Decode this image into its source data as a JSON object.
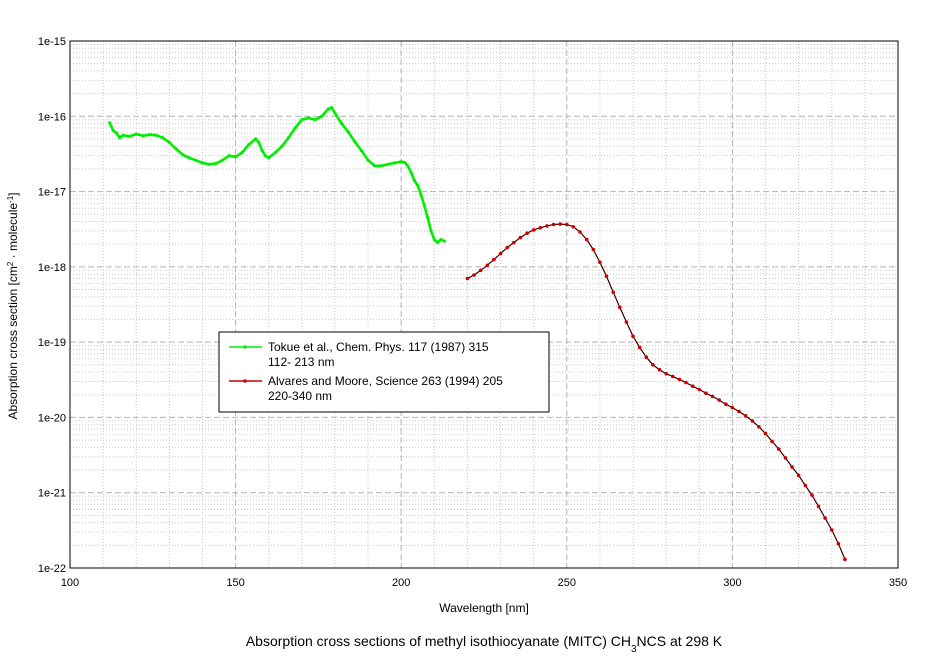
{
  "chart_data": {
    "type": "line",
    "title": "",
    "caption": "Absorption cross sections of methyl isothiocyanate (MITC) CH3NCS at 298 K",
    "caption_parts": {
      "before": "Absorption cross sections of methyl isothiocyanate (MITC) CH",
      "sub": "3",
      "after": "NCS at 298 K"
    },
    "xlabel": "Wavelength [nm]",
    "ylabel": "Absorption cross section [cm2 · molecule-1]",
    "ylabel_parts": {
      "pre": "Absorption cross section [cm",
      "sup1": "2",
      "mid": " · molecule",
      "sup2": "-1",
      "post": "]"
    },
    "x_scale": "linear",
    "y_scale": "log",
    "xlim": [
      100,
      350
    ],
    "ylim": [
      1e-22,
      1e-15
    ],
    "x_ticks": [
      "100",
      "150",
      "200",
      "250",
      "300",
      "350"
    ],
    "y_ticks": [
      "1e-22",
      "1e-21",
      "1e-20",
      "1e-19",
      "1e-18",
      "1e-17",
      "1e-16",
      "1e-15"
    ],
    "grid": true,
    "legend_position": "center-left",
    "series": [
      {
        "name": "Tokue et al., Chem. Phys. 117 (1987) 315",
        "range": "112- 213 nm",
        "color": "#00ee00",
        "x": [
          112,
          113,
          114,
          115,
          116,
          118,
          120,
          122,
          124,
          126,
          128,
          130,
          132,
          134,
          136,
          138,
          140,
          142,
          144,
          146,
          148,
          150,
          152,
          154,
          156,
          157,
          158,
          159,
          160,
          162,
          164,
          166,
          168,
          170,
          172,
          174,
          176,
          178,
          179,
          180,
          182,
          184,
          186,
          188,
          190,
          192,
          194,
          196,
          198,
          200,
          201,
          202,
          203,
          204,
          205,
          206,
          207,
          208,
          209,
          210,
          211,
          212,
          213
        ],
        "y": [
          8.2e-17,
          6.5e-17,
          6e-17,
          5.2e-17,
          5.6e-17,
          5.4e-17,
          5.8e-17,
          5.5e-17,
          5.7e-17,
          5.6e-17,
          5.2e-17,
          4.5e-17,
          3.7e-17,
          3.1e-17,
          2.8e-17,
          2.6e-17,
          2.4e-17,
          2.3e-17,
          2.35e-17,
          2.6e-17,
          3e-17,
          2.9e-17,
          3.3e-17,
          4.2e-17,
          5e-17,
          4.5e-17,
          3.5e-17,
          3e-17,
          2.8e-17,
          3.3e-17,
          4e-17,
          5.2e-17,
          7e-17,
          9e-17,
          9.5e-17,
          9e-17,
          1e-16,
          1.25e-16,
          1.3e-16,
          1.1e-16,
          8e-17,
          6.2e-17,
          4.6e-17,
          3.5e-17,
          2.6e-17,
          2.2e-17,
          2.2e-17,
          2.3e-17,
          2.4e-17,
          2.5e-17,
          2.45e-17,
          2.2e-17,
          1.8e-17,
          1.4e-17,
          1.2e-17,
          9e-18,
          6.5e-18,
          4.5e-18,
          3e-18,
          2.3e-18,
          2.1e-18,
          2.3e-18,
          2.2e-18
        ]
      },
      {
        "name": "Alvares and Moore, Science 263 (1994) 205",
        "range": "220-340 nm",
        "color": "#cc0000",
        "x": [
          220,
          222,
          224,
          226,
          228,
          230,
          232,
          234,
          236,
          238,
          240,
          242,
          244,
          246,
          248,
          250,
          252,
          254,
          256,
          258,
          260,
          262,
          264,
          266,
          268,
          270,
          272,
          274,
          276,
          278,
          280,
          282,
          284,
          286,
          288,
          290,
          292,
          294,
          296,
          298,
          300,
          302,
          304,
          306,
          308,
          310,
          312,
          314,
          316,
          318,
          320,
          322,
          324,
          326,
          328,
          330,
          332,
          334
        ],
        "y": [
          7e-19,
          7.8e-19,
          9e-19,
          1.05e-18,
          1.25e-18,
          1.5e-18,
          1.8e-18,
          2.1e-18,
          2.45e-18,
          2.8e-18,
          3.1e-18,
          3.3e-18,
          3.5e-18,
          3.65e-18,
          3.7e-18,
          3.65e-18,
          3.4e-18,
          2.9e-18,
          2.3e-18,
          1.7e-18,
          1.15e-18,
          7.5e-19,
          4.6e-19,
          2.9e-19,
          1.85e-19,
          1.2e-19,
          8.5e-20,
          6.3e-20,
          5e-20,
          4.3e-20,
          3.8e-20,
          3.5e-20,
          3.2e-20,
          2.9e-20,
          2.6e-20,
          2.35e-20,
          2.1e-20,
          1.9e-20,
          1.7e-20,
          1.5e-20,
          1.35e-20,
          1.2e-20,
          1.05e-20,
          9e-21,
          7.5e-21,
          6.1e-21,
          4.8e-21,
          3.8e-21,
          2.9e-21,
          2.2e-21,
          1.7e-21,
          1.25e-21,
          9.3e-22,
          6.6e-22,
          4.6e-22,
          3.2e-22,
          2.1e-22,
          1.3e-22
        ]
      }
    ]
  }
}
